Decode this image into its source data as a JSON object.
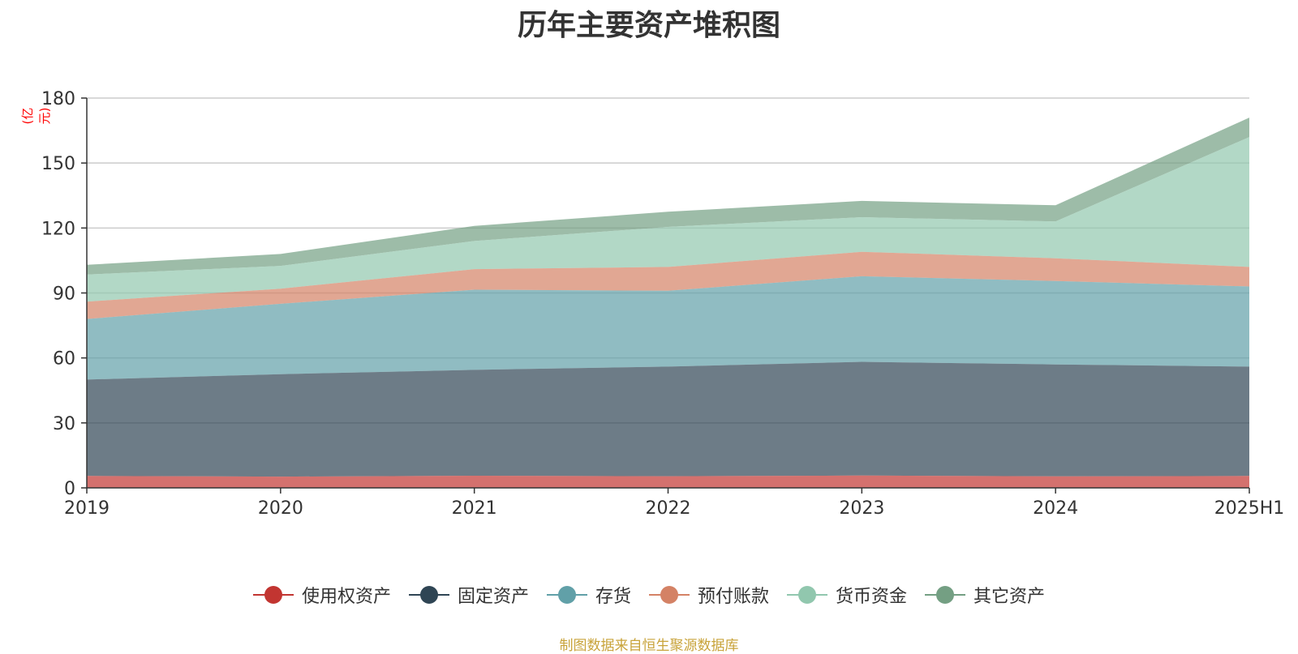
{
  "chart_data": {
    "type": "area",
    "stacked": true,
    "title": "历年主要资产堆积图",
    "y_unit": "(亿元)",
    "categories": [
      "2019",
      "2020",
      "2021",
      "2022",
      "2023",
      "2024",
      "2025H1"
    ],
    "ylim": [
      0,
      180
    ],
    "yticks": [
      "0",
      "30",
      "60",
      "90",
      "120",
      "150",
      "180"
    ],
    "grid": true,
    "legend_position": "bottom",
    "series": [
      {
        "name": "使用权资产",
        "color": "#c23531",
        "values": [
          5.5,
          5.2,
          5.6,
          5.4,
          5.7,
          5.3,
          5.5
        ]
      },
      {
        "name": "固定资产",
        "color": "#2f4554",
        "values": [
          44.5,
          47.3,
          48.9,
          50.6,
          52.5,
          51.7,
          50.5
        ]
      },
      {
        "name": "存货",
        "color": "#61a0a8",
        "values": [
          28,
          32.5,
          37,
          35,
          39.5,
          38.5,
          37
        ]
      },
      {
        "name": "预付账款",
        "color": "#d48265",
        "values": [
          8,
          7,
          9.5,
          11,
          11.3,
          10.5,
          9
        ]
      },
      {
        "name": "货币资金",
        "color": "#91c7ae",
        "values": [
          12.5,
          10.5,
          13,
          18.5,
          16,
          17,
          60
        ]
      },
      {
        "name": "其它资产",
        "color": "#749f83",
        "values": [
          4.5,
          5.5,
          7,
          7,
          7.5,
          7.5,
          9
        ]
      }
    ],
    "source": "制图数据来自恒生聚源数据库"
  }
}
